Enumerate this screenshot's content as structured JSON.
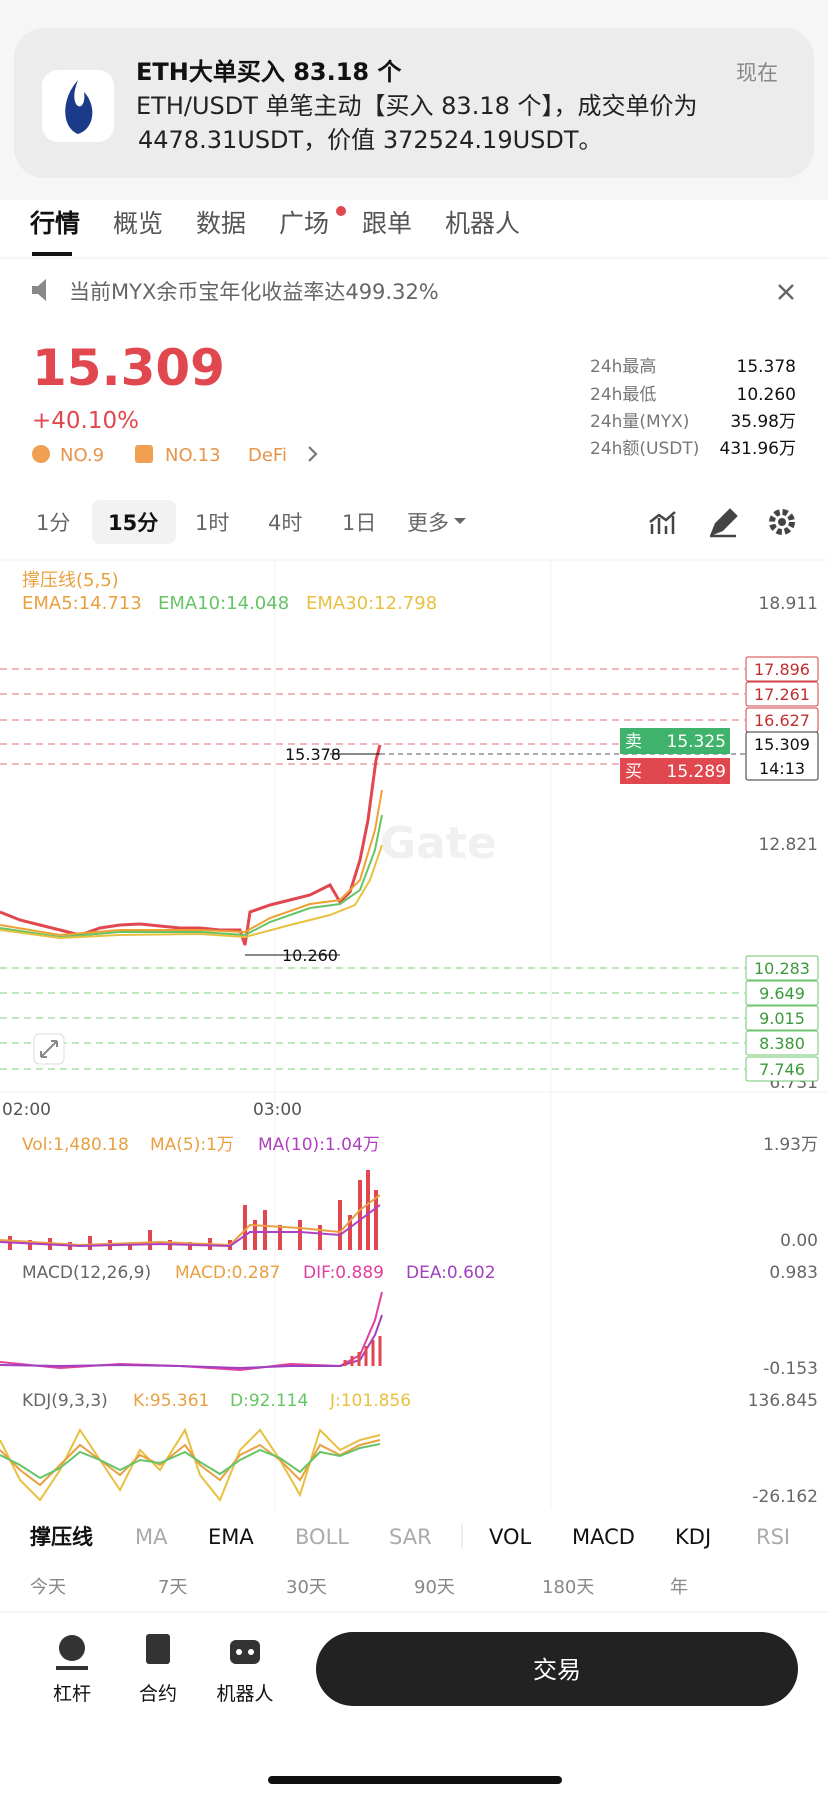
{
  "notification": {
    "title": "ETH大单买入 83.18 个",
    "time": "现在",
    "body_line1": "ETH/USDT 单笔主动【买入 83.18 个】，成交单价为",
    "body_line2": "4478.31USDT，价值 372524.19USDT。"
  },
  "tabs": [
    "行情",
    "概览",
    "数据",
    "广场",
    "跟单",
    "机器人"
  ],
  "banner": "当前MYX余币宝年化收益率达499.32%",
  "ticker": {
    "price": "15.309",
    "change": "+40.10%",
    "tags": [
      "NO.9",
      "NO.13",
      "DeFi"
    ]
  },
  "stats": [
    {
      "label": "24h最高",
      "value": "15.378"
    },
    {
      "label": "24h最低",
      "value": "10.260"
    },
    {
      "label": "24h量(MYX)",
      "value": "35.98万"
    },
    {
      "label": "24h额(USDT)",
      "value": "431.96万"
    }
  ],
  "timeframes": [
    "1分",
    "15分",
    "1时",
    "4时",
    "1日",
    "更多"
  ],
  "chart": {
    "indicator_title": "撑压线(5,5)",
    "ema": [
      "EMA5:14.713",
      "EMA10:14.048",
      "EMA30:12.798"
    ],
    "axis": [
      "18.911",
      "12.821",
      "6.731"
    ],
    "resistance": [
      "17.896",
      "17.261",
      "16.627"
    ],
    "current": "15.309",
    "current_time": "14:13",
    "sell_label": "卖",
    "sell": "15.325",
    "buy_label": "买",
    "buy": "15.289",
    "support": [
      "10.283",
      "9.649",
      "9.015",
      "8.380",
      "7.746"
    ],
    "high_label": "15.378",
    "low_label": "10.260",
    "time_labels": [
      "02:00",
      "03:00"
    ],
    "watermark": "Gate"
  },
  "vol": {
    "labels": [
      "Vol:1,480.18",
      "MA(5):1万",
      "MA(10):1.04万"
    ],
    "axis": [
      "1.93万",
      "0.00"
    ]
  },
  "macd": {
    "labels": [
      "MACD(12,26,9)",
      "MACD:0.287",
      "DIF:0.889",
      "DEA:0.602"
    ],
    "axis": [
      "0.983",
      "-0.153"
    ]
  },
  "kdj": {
    "labels": [
      "KDJ(9,3,3)",
      "K:95.361",
      "D:92.114",
      "J:101.856"
    ],
    "axis": [
      "136.845",
      "-26.162"
    ]
  },
  "indicator_tabs": [
    "撑压线",
    "MA",
    "EMA",
    "BOLL",
    "SAR",
    "VOL",
    "MACD",
    "KDJ",
    "RSI"
  ],
  "periods": [
    "今天",
    "7天",
    "30天",
    "90天",
    "180天",
    "年"
  ],
  "bottom_nav": [
    "杠杆",
    "合约",
    "机器人"
  ],
  "trade_button": "交易"
}
